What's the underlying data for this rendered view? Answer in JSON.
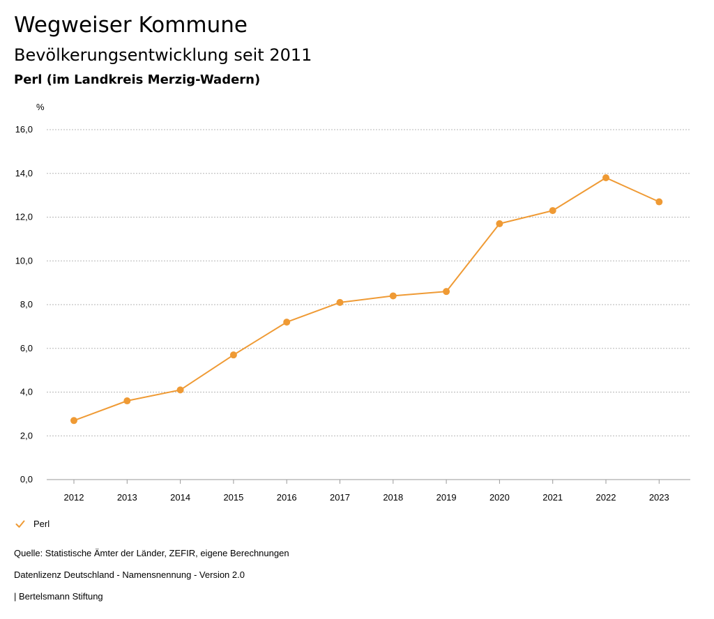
{
  "header": {
    "title": "Wegweiser Kommune",
    "subtitle": "Bevölkerungsentwicklung seit 2011",
    "region": "Perl (im Landkreis Merzig-Wadern)"
  },
  "chart_data": {
    "type": "line",
    "title": "Bevölkerungsentwicklung seit 2011",
    "ylabel": "%",
    "xlabel": "",
    "ylim": [
      0,
      16
    ],
    "yticks": [
      0,
      2,
      4,
      6,
      8,
      10,
      12,
      14,
      16
    ],
    "ytick_labels": [
      "0,0",
      "2,0",
      "4,0",
      "6,0",
      "8,0",
      "10,0",
      "12,0",
      "14,0",
      "16,0"
    ],
    "categories": [
      "2012",
      "2013",
      "2014",
      "2015",
      "2016",
      "2017",
      "2018",
      "2019",
      "2020",
      "2021",
      "2022",
      "2023"
    ],
    "series": [
      {
        "name": "Perl",
        "color": "#ef9a34",
        "values": [
          2.7,
          3.6,
          4.1,
          5.7,
          7.2,
          8.1,
          8.4,
          8.6,
          11.7,
          12.3,
          13.8,
          12.7
        ]
      }
    ],
    "grid": true,
    "legend": "bottom-left"
  },
  "legend": {
    "label": "Perl",
    "icon": "check-icon"
  },
  "footer": {
    "source": "Quelle: Statistische Ämter der Länder, ZEFIR, eigene Berechnungen",
    "license": "Datenlizenz Deutschland - Namensnennung - Version 2.0",
    "publisher": "| Bertelsmann Stiftung"
  }
}
